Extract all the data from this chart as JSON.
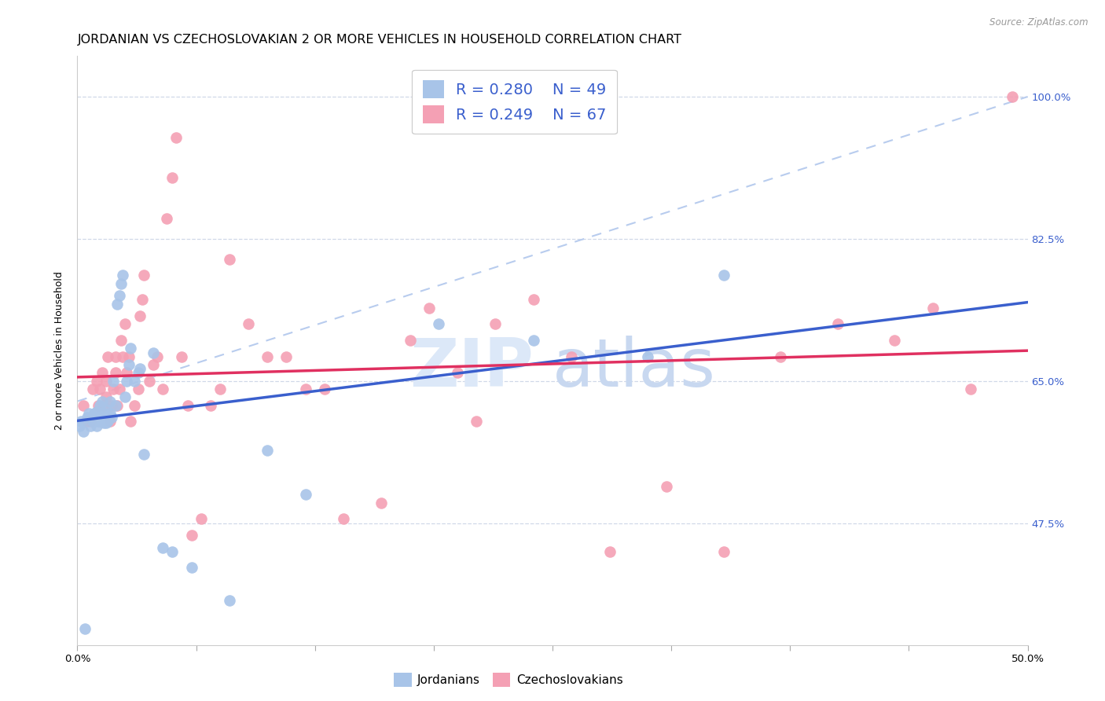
{
  "title": "JORDANIAN VS CZECHOSLOVAKIAN 2 OR MORE VEHICLES IN HOUSEHOLD CORRELATION CHART",
  "source": "Source: ZipAtlas.com",
  "ylabel": "2 or more Vehicles in Household",
  "r_jordanian": 0.28,
  "n_jordanian": 49,
  "r_czechoslovakian": 0.249,
  "n_czechoslovakian": 67,
  "jordanian_color": "#a8c4e8",
  "czechoslovakian_color": "#f4a0b4",
  "jordanian_line_color": "#3a5fcd",
  "czechoslovakian_line_color": "#e03060",
  "dashed_line_color": "#b8ccee",
  "legend_text_color": "#3a5fcd",
  "watermark_zip_color": "#dce8f8",
  "watermark_atlas_color": "#c8d8f0",
  "title_fontsize": 11.5,
  "axis_label_fontsize": 9,
  "tick_fontsize": 9.5,
  "xlim": [
    0.0,
    0.5
  ],
  "ylim": [
    0.325,
    1.05
  ],
  "ytick_vals": [
    1.0,
    0.825,
    0.65,
    0.475
  ],
  "ytick_labels": [
    "100.0%",
    "82.5%",
    "65.0%",
    "47.5%"
  ],
  "jordanian_x": [
    0.001,
    0.002,
    0.003,
    0.004,
    0.005,
    0.006,
    0.007,
    0.008,
    0.009,
    0.01,
    0.01,
    0.011,
    0.012,
    0.012,
    0.013,
    0.013,
    0.014,
    0.014,
    0.015,
    0.015,
    0.016,
    0.017,
    0.017,
    0.018,
    0.019,
    0.02,
    0.021,
    0.022,
    0.023,
    0.024,
    0.025,
    0.026,
    0.027,
    0.028,
    0.03,
    0.032,
    0.033,
    0.035,
    0.04,
    0.045,
    0.05,
    0.06,
    0.08,
    0.1,
    0.12,
    0.19,
    0.24,
    0.3,
    0.34
  ],
  "jordanian_y": [
    0.595,
    0.6,
    0.588,
    0.345,
    0.605,
    0.61,
    0.595,
    0.6,
    0.61,
    0.595,
    0.612,
    0.6,
    0.6,
    0.62,
    0.605,
    0.625,
    0.598,
    0.61,
    0.598,
    0.615,
    0.6,
    0.61,
    0.625,
    0.605,
    0.65,
    0.62,
    0.745,
    0.755,
    0.77,
    0.78,
    0.63,
    0.65,
    0.67,
    0.69,
    0.65,
    0.66,
    0.665,
    0.56,
    0.685,
    0.445,
    0.44,
    0.42,
    0.38,
    0.565,
    0.51,
    0.72,
    0.7,
    0.68,
    0.78
  ],
  "czechoslovakian_x": [
    0.003,
    0.005,
    0.007,
    0.008,
    0.01,
    0.011,
    0.012,
    0.013,
    0.014,
    0.015,
    0.015,
    0.016,
    0.017,
    0.018,
    0.019,
    0.02,
    0.02,
    0.021,
    0.022,
    0.023,
    0.024,
    0.025,
    0.026,
    0.027,
    0.028,
    0.03,
    0.032,
    0.033,
    0.034,
    0.035,
    0.038,
    0.04,
    0.042,
    0.045,
    0.047,
    0.05,
    0.052,
    0.055,
    0.058,
    0.06,
    0.065,
    0.07,
    0.075,
    0.08,
    0.09,
    0.1,
    0.11,
    0.12,
    0.13,
    0.14,
    0.16,
    0.175,
    0.185,
    0.2,
    0.21,
    0.22,
    0.24,
    0.26,
    0.28,
    0.31,
    0.34,
    0.37,
    0.4,
    0.43,
    0.45,
    0.47,
    0.492
  ],
  "czechoslovakian_y": [
    0.62,
    0.6,
    0.6,
    0.64,
    0.65,
    0.62,
    0.64,
    0.66,
    0.62,
    0.63,
    0.65,
    0.68,
    0.6,
    0.62,
    0.64,
    0.66,
    0.68,
    0.62,
    0.64,
    0.7,
    0.68,
    0.72,
    0.66,
    0.68,
    0.6,
    0.62,
    0.64,
    0.73,
    0.75,
    0.78,
    0.65,
    0.67,
    0.68,
    0.64,
    0.85,
    0.9,
    0.95,
    0.68,
    0.62,
    0.46,
    0.48,
    0.62,
    0.64,
    0.8,
    0.72,
    0.68,
    0.68,
    0.64,
    0.64,
    0.48,
    0.5,
    0.7,
    0.74,
    0.66,
    0.6,
    0.72,
    0.75,
    0.68,
    0.44,
    0.52,
    0.44,
    0.68,
    0.72,
    0.7,
    0.74,
    0.64,
    1.0
  ]
}
